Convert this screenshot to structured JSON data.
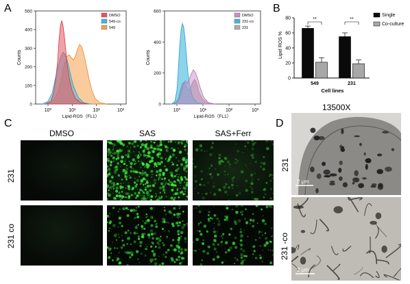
{
  "panels": {
    "a": {
      "letter": "A",
      "left": {
        "ylabel": "Counts",
        "xlabel": "Lipid-ROS（FL1）",
        "yticks": [
          "500",
          "400",
          "300",
          "200",
          "100",
          "0"
        ],
        "xticks": [
          "10⁰",
          "10¹",
          "10²",
          "10³"
        ],
        "legend": [
          {
            "name": "DMSO",
            "color": "#e8545c"
          },
          {
            "name": "549-co",
            "color": "#3fb6e0"
          },
          {
            "name": "549",
            "color": "#f5a04a"
          }
        ]
      },
      "right": {
        "ylabel": "Counts",
        "xlabel": "Lipid-ROS（FL1）",
        "yticks": [
          "600",
          "400",
          "200",
          "0"
        ],
        "xticks": [
          "10⁰",
          "10¹",
          "10²",
          "10³"
        ],
        "legend": [
          {
            "name": "DMSO",
            "color": "#c98fc8"
          },
          {
            "name": "231-co",
            "color": "#3fb6e0"
          },
          {
            "name": "231",
            "color": "#b0aca6"
          }
        ]
      }
    },
    "b": {
      "letter": "B",
      "chart_data": {
        "type": "bar",
        "categories": [
          "549",
          "231"
        ],
        "series": [
          {
            "name": "Single",
            "values": [
              66,
              55
            ],
            "errors": [
              3,
              5
            ],
            "color": "#0a0a0a"
          },
          {
            "name": "Co-culture",
            "values": [
              21,
              19
            ],
            "errors": [
              6,
              5
            ],
            "color": "#a8a8a8"
          }
        ],
        "ylabel": "Lipid ROS %",
        "xlabel": "Cell lines",
        "ylim": [
          0,
          80
        ],
        "yticks": [
          "0",
          "20",
          "40",
          "60",
          "80"
        ],
        "significance": [
          "**",
          "**"
        ],
        "legend_position": "right"
      }
    },
    "c": {
      "letter": "C",
      "columns": [
        "DMSO",
        "SAS",
        "SAS+Ferr"
      ],
      "rows": [
        "231",
        "231 co"
      ]
    },
    "d": {
      "letter": "D",
      "title": "13500X",
      "rows": [
        "231",
        "231 -co"
      ],
      "scale_bar": "2 μm"
    }
  }
}
